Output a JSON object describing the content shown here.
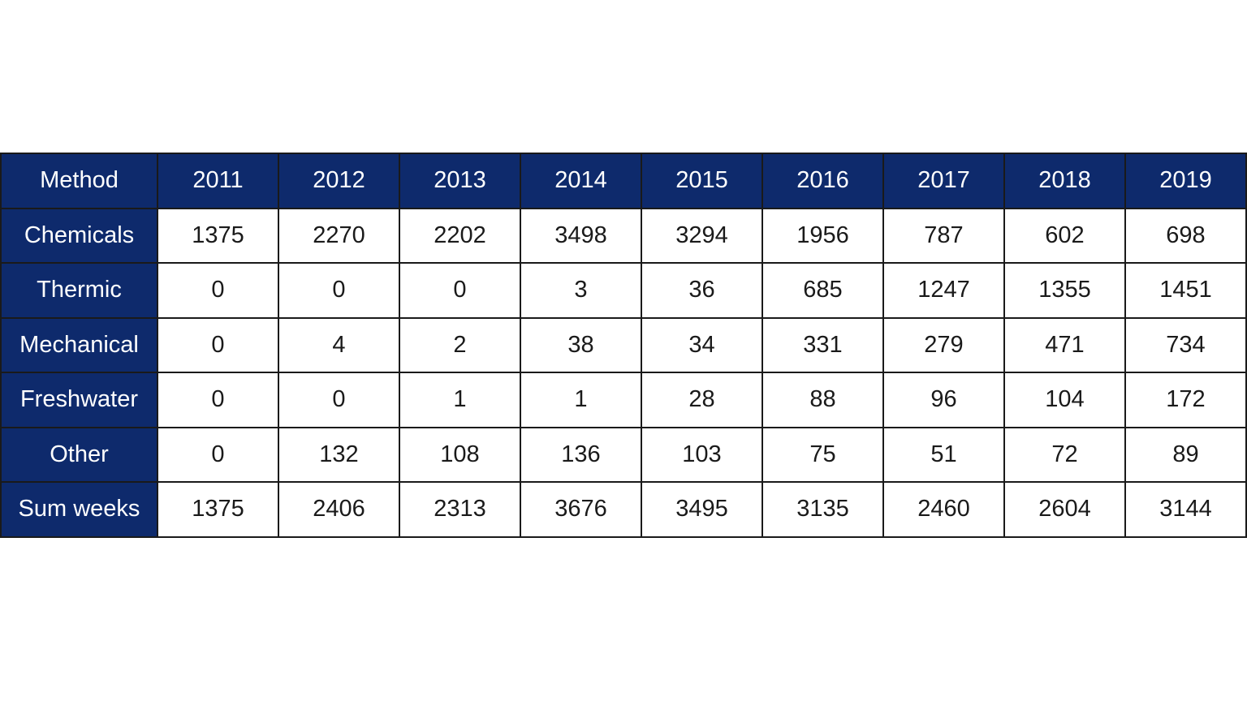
{
  "table": {
    "header": [
      "Method",
      "2011",
      "2012",
      "2013",
      "2014",
      "2015",
      "2016",
      "2017",
      "2018",
      "2019"
    ],
    "rows": [
      [
        "Chemicals",
        1375,
        2270,
        2202,
        3498,
        3294,
        1956,
        787,
        602,
        698
      ],
      [
        "Thermic",
        0,
        0,
        0,
        3,
        36,
        685,
        1247,
        1355,
        1451
      ],
      [
        "Mechanical",
        0,
        4,
        2,
        38,
        34,
        331,
        279,
        471,
        734
      ],
      [
        "Freshwater",
        0,
        0,
        1,
        1,
        28,
        88,
        96,
        104,
        172
      ],
      [
        "Other",
        0,
        132,
        108,
        136,
        103,
        75,
        51,
        72,
        89
      ],
      [
        "Sum weeks",
        1375,
        2406,
        2313,
        3676,
        3495,
        3135,
        2460,
        2604,
        3144
      ]
    ]
  }
}
